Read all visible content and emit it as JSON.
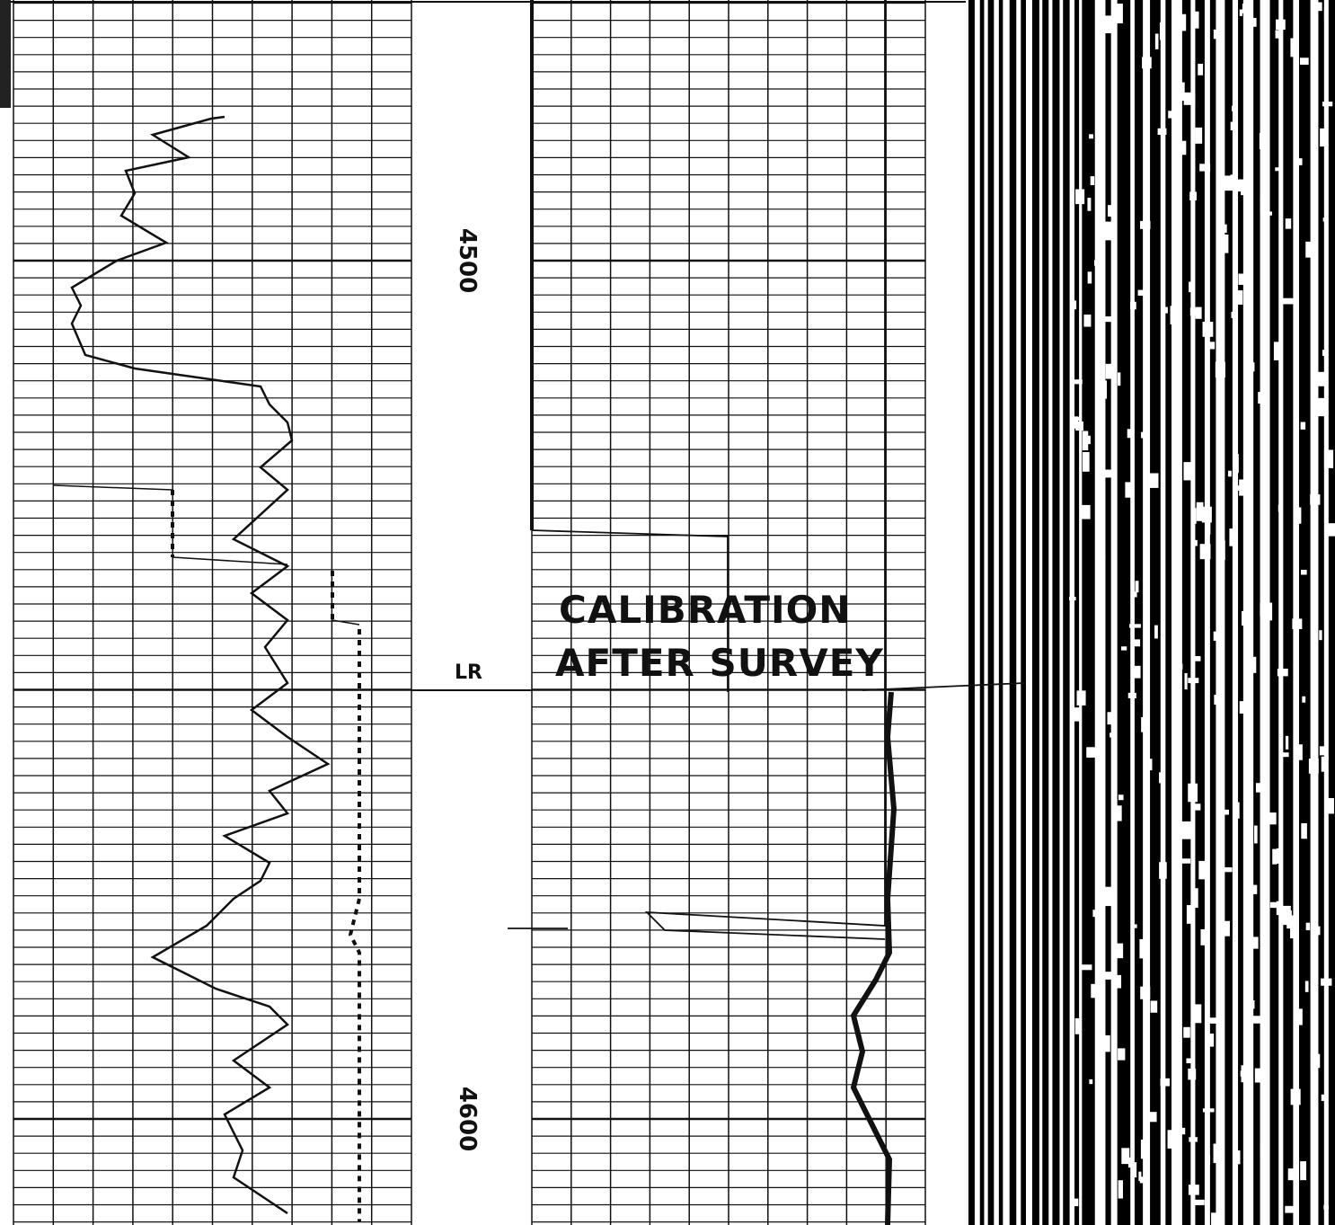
{
  "depth_track": {
    "labels": [
      "4500",
      "4600"
    ]
  },
  "annotations": {
    "marker": "LR",
    "calibration": [
      "CALIBRATION",
      "AFTER SURVEY"
    ]
  }
}
